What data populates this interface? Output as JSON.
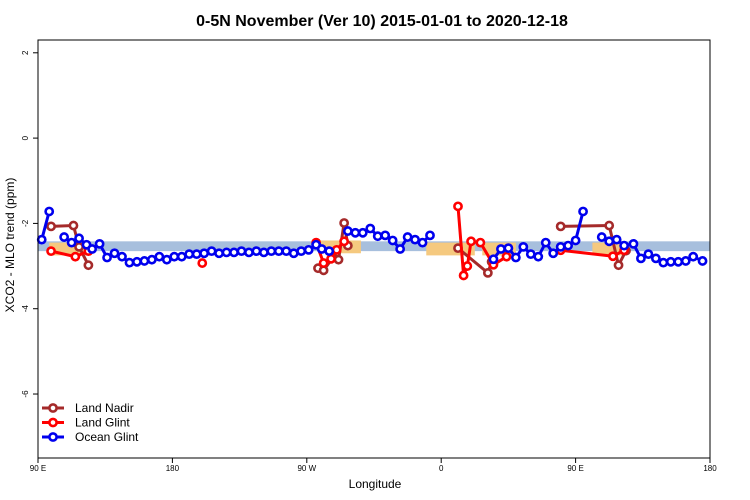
{
  "chart_data": {
    "type": "line",
    "title": "0-5N November (Ver 10)   2015-01-01 to 2020-12-18",
    "xlabel": "Longitude",
    "ylabel": "XCO2 - MLO trend (ppm)",
    "xlim": [
      90,
      450
    ],
    "ylim": [
      -7.5,
      2.3
    ],
    "xticks": [
      {
        "value": 90,
        "label": "90 E"
      },
      {
        "value": 162,
        "label": "180"
      },
      {
        "value": 234,
        "label": "90 W"
      },
      {
        "value": 306,
        "label": "0"
      },
      {
        "value": 378,
        "label": "90 E"
      },
      {
        "value": 450,
        "label": "180"
      }
    ],
    "yticks": [
      {
        "value": 2,
        "label": "2"
      },
      {
        "value": 0,
        "label": "0"
      },
      {
        "value": -2,
        "label": "-2"
      },
      {
        "value": -4,
        "label": "-4"
      },
      {
        "value": -6,
        "label": "-6"
      }
    ],
    "grid": false,
    "legend_position": "bottom-left",
    "bands": [
      {
        "name": "Ocean",
        "x": [
          90,
          450
        ],
        "y": [
          -2.65,
          -2.42
        ],
        "color": "#a7bfdd"
      },
      {
        "name": "Land",
        "x": [
          96,
          116
        ],
        "y": [
          -2.75,
          -2.45
        ],
        "color": "#f5c97f"
      },
      {
        "name": "Land",
        "x": [
          240,
          263
        ],
        "y": [
          -2.7,
          -2.4
        ],
        "color": "#f5c97f"
      },
      {
        "name": "Land",
        "x": [
          298,
          324
        ],
        "y": [
          -2.75,
          -2.45
        ],
        "color": "#f5c97f"
      },
      {
        "name": "Land",
        "x": [
          328,
          346
        ],
        "y": [
          -2.75,
          -2.45
        ],
        "color": "#f5c97f"
      },
      {
        "name": "Land",
        "x": [
          387,
          404
        ],
        "y": [
          -2.75,
          -2.45
        ],
        "color": "#f5c97f"
      }
    ],
    "series": [
      {
        "name": "Land Nadir",
        "color": "#a52a2a",
        "segments": [
          [
            [
              97,
              -2.07
            ],
            [
              109,
              -2.05
            ],
            [
              112,
              -2.55
            ],
            [
              117,
              -2.98
            ]
          ],
          [
            [
              240,
              -3.05
            ],
            [
              243,
              -3.1
            ],
            [
              248,
              -2.8
            ],
            [
              251,
              -2.85
            ],
            [
              254,
              -1.99
            ],
            [
              256,
              -2.52
            ]
          ],
          [
            [
              315,
              -2.58
            ],
            [
              331,
              -3.16
            ],
            [
              333,
              -2.9
            ]
          ],
          [
            [
              370,
              -2.07
            ],
            [
              396,
              -2.05
            ],
            [
              401,
              -2.98
            ],
            [
              405,
              -2.64
            ]
          ]
        ]
      },
      {
        "name": "Land Glint",
        "color": "#ff0000",
        "segments": [
          [
            [
              97,
              -2.65
            ],
            [
              110,
              -2.78
            ],
            [
              117,
              -2.65
            ]
          ],
          [
            [
              178,
              -2.93
            ]
          ],
          [
            [
              239,
              -2.45
            ],
            [
              243,
              -2.93
            ],
            [
              247,
              -2.83
            ],
            [
              250,
              -2.62
            ],
            [
              254,
              -2.42
            ]
          ],
          [
            [
              315,
              -1.6
            ],
            [
              318,
              -3.22
            ],
            [
              320,
              -3.0
            ],
            [
              322,
              -2.42
            ],
            [
              327,
              -2.45
            ],
            [
              334,
              -2.97
            ],
            [
              341,
              -2.78
            ]
          ],
          [
            [
              370,
              -2.63
            ],
            [
              398,
              -2.77
            ],
            [
              404,
              -2.63
            ]
          ]
        ]
      },
      {
        "name": "Ocean Glint",
        "color": "#0000ee",
        "segments": [
          [
            [
              92,
              -2.38
            ],
            [
              96,
              -1.72
            ]
          ],
          [
            [
              104,
              -2.32
            ],
            [
              108,
              -2.45
            ],
            [
              112,
              -2.35
            ],
            [
              116,
              -2.5
            ],
            [
              119,
              -2.6
            ],
            [
              123,
              -2.48
            ],
            [
              127,
              -2.8
            ],
            [
              131,
              -2.7
            ],
            [
              135,
              -2.78
            ],
            [
              139,
              -2.92
            ],
            [
              143,
              -2.9
            ],
            [
              147,
              -2.88
            ],
            [
              151,
              -2.85
            ],
            [
              155,
              -2.78
            ],
            [
              159,
              -2.85
            ],
            [
              163,
              -2.78
            ],
            [
              167,
              -2.78
            ],
            [
              171,
              -2.72
            ],
            [
              175,
              -2.72
            ],
            [
              179,
              -2.7
            ],
            [
              183,
              -2.65
            ],
            [
              187,
              -2.7
            ],
            [
              191,
              -2.68
            ],
            [
              195,
              -2.68
            ],
            [
              199,
              -2.65
            ],
            [
              203,
              -2.68
            ],
            [
              207,
              -2.65
            ],
            [
              211,
              -2.68
            ],
            [
              215,
              -2.65
            ],
            [
              219,
              -2.65
            ],
            [
              223,
              -2.65
            ],
            [
              227,
              -2.7
            ],
            [
              231,
              -2.65
            ],
            [
              235,
              -2.62
            ],
            [
              239,
              -2.5
            ],
            [
              242,
              -2.6
            ],
            [
              246,
              -2.65
            ]
          ],
          [
            [
              256,
              -2.18
            ],
            [
              260,
              -2.22
            ],
            [
              264,
              -2.22
            ],
            [
              268,
              -2.12
            ],
            [
              272,
              -2.3
            ],
            [
              276,
              -2.28
            ],
            [
              280,
              -2.4
            ],
            [
              284,
              -2.6
            ],
            [
              288,
              -2.32
            ],
            [
              292,
              -2.38
            ],
            [
              296,
              -2.45
            ],
            [
              300,
              -2.28
            ]
          ],
          [
            [
              334,
              -2.84
            ],
            [
              338,
              -2.6
            ],
            [
              342,
              -2.58
            ],
            [
              346,
              -2.8
            ],
            [
              350,
              -2.55
            ],
            [
              354,
              -2.72
            ],
            [
              358,
              -2.78
            ],
            [
              362,
              -2.45
            ],
            [
              366,
              -2.7
            ],
            [
              370,
              -2.55
            ],
            [
              374,
              -2.52
            ],
            [
              378,
              -2.4
            ],
            [
              382,
              -1.72
            ]
          ],
          [
            [
              392,
              -2.32
            ],
            [
              396,
              -2.42
            ],
            [
              400,
              -2.38
            ],
            [
              404,
              -2.52
            ],
            [
              409,
              -2.48
            ],
            [
              413,
              -2.82
            ],
            [
              417,
              -2.72
            ],
            [
              421,
              -2.82
            ],
            [
              425,
              -2.92
            ],
            [
              429,
              -2.9
            ],
            [
              433,
              -2.9
            ],
            [
              437,
              -2.88
            ],
            [
              441,
              -2.78
            ],
            [
              446,
              -2.88
            ]
          ]
        ]
      }
    ]
  }
}
